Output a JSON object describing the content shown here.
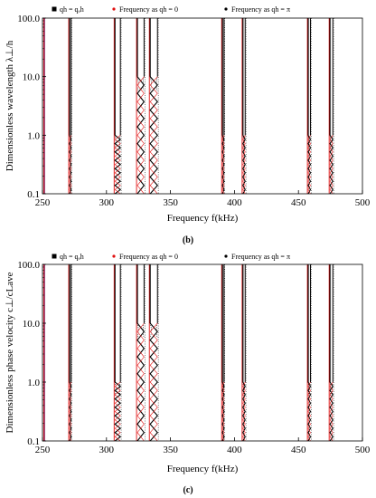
{
  "chart_data": [
    {
      "type": "line",
      "panel_label": "(b)",
      "xlabel": "Frequency  f(kHz)",
      "ylabel": "Dimensionless wavelength  λ⊥/h",
      "xlim": [
        250,
        500
      ],
      "ylim": [
        0.1,
        100
      ],
      "yscale": "log",
      "x_ticks": [
        250,
        300,
        350,
        400,
        450,
        500
      ],
      "y_ticks": [
        "0.1",
        "1.0",
        "10.0",
        "100.0"
      ],
      "grid": false,
      "legend_position": "top",
      "legend": [
        "qh = qₐh",
        "Frequency as qh = 0",
        "Frequency as qh = π"
      ],
      "series_colors": [
        "#000000",
        "#e01010",
        "#000000"
      ],
      "bands": [
        {
          "f0": 251.0,
          "f1": 251.0,
          "onset": 100.0
        },
        {
          "f0": 270.5,
          "f1": 273.0,
          "onset": 1.0
        },
        {
          "f0": 306.0,
          "f1": 311.5,
          "onset": 1.0
        },
        {
          "f0": 323.5,
          "f1": 330.0,
          "onset": 10.0
        },
        {
          "f0": 333.5,
          "f1": 340.5,
          "onset": 10.0
        },
        {
          "f0": 390.0,
          "f1": 392.5,
          "onset": 1.0
        },
        {
          "f0": 406.0,
          "f1": 409.0,
          "onset": 1.0
        },
        {
          "f0": 457.0,
          "f1": 460.0,
          "onset": 1.0
        },
        {
          "f0": 474.0,
          "f1": 477.5,
          "onset": 1.0
        }
      ]
    },
    {
      "type": "line",
      "panel_label": "(c)",
      "xlabel": "Frequency  f(kHz)",
      "ylabel": "Dimensionless phase velocity  c⊥/cLave",
      "xlim": [
        250,
        500
      ],
      "ylim": [
        0.1,
        100
      ],
      "yscale": "log",
      "x_ticks": [
        250,
        300,
        350,
        400,
        450,
        500
      ],
      "y_ticks": [
        "0.1",
        "1.0",
        "10.0",
        "100.0"
      ],
      "grid": false,
      "legend_position": "top",
      "legend": [
        "qh = qₐh",
        "Frequency as qh = 0",
        "Frequency as qh = π"
      ],
      "series_colors": [
        "#000000",
        "#e01010",
        "#000000"
      ],
      "bands": [
        {
          "f0": 251.0,
          "f1": 251.0,
          "onset": 100.0
        },
        {
          "f0": 270.5,
          "f1": 273.0,
          "onset": 1.0
        },
        {
          "f0": 306.0,
          "f1": 311.5,
          "onset": 1.0
        },
        {
          "f0": 323.5,
          "f1": 330.0,
          "onset": 10.0
        },
        {
          "f0": 333.5,
          "f1": 340.5,
          "onset": 10.0
        },
        {
          "f0": 390.0,
          "f1": 392.5,
          "onset": 1.0
        },
        {
          "f0": 406.0,
          "f1": 409.0,
          "onset": 1.0
        },
        {
          "f0": 457.0,
          "f1": 460.0,
          "onset": 1.0
        },
        {
          "f0": 474.0,
          "f1": 477.5,
          "onset": 1.0
        }
      ]
    }
  ]
}
